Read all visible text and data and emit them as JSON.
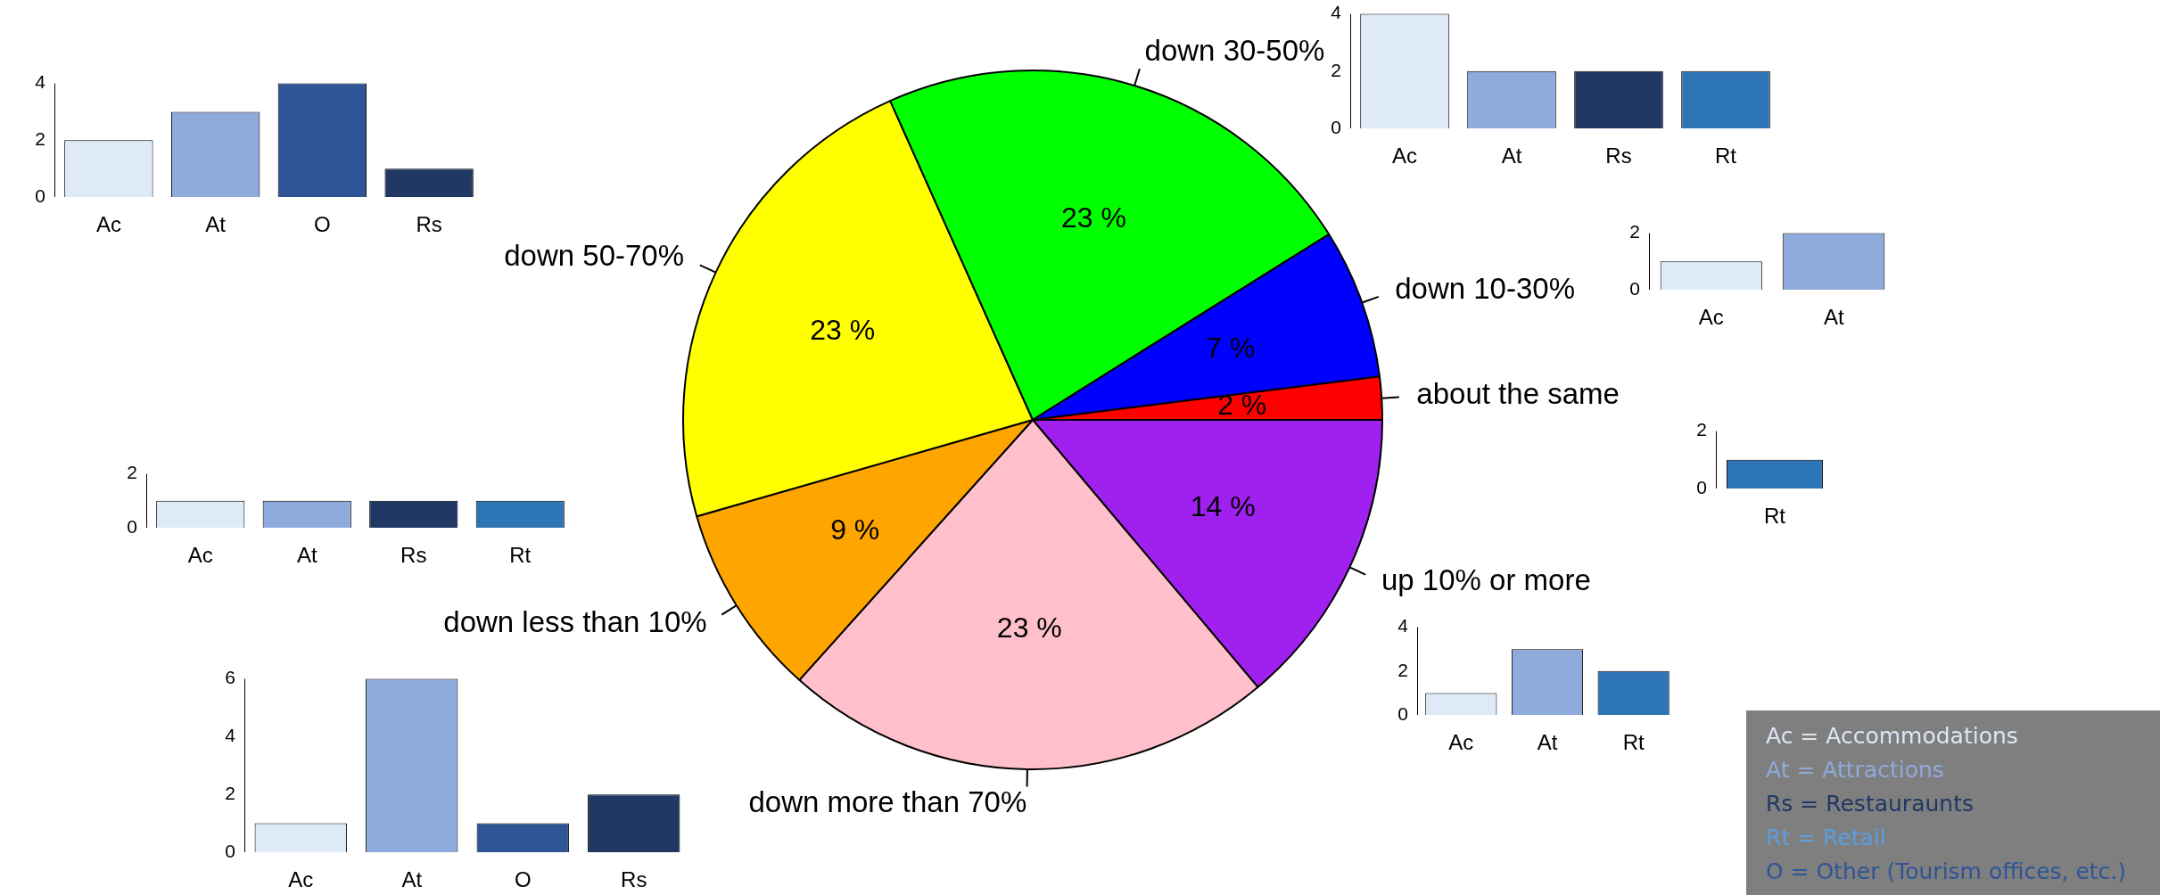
{
  "chart_data": [
    {
      "type": "bar",
      "categories": [
        "Ac",
        "At",
        "O",
        "Rs"
      ],
      "values": [
        2,
        3,
        4,
        1
      ],
      "colors": [
        "#deebf7",
        "#8faadc",
        "#2f5597",
        "#203864"
      ],
      "ylim": [
        0,
        4
      ],
      "yticks": [
        0,
        2,
        4
      ]
    },
    {
      "type": "pie",
      "categories": [
        "up 10% or more",
        "down more than 70%",
        "down less than 10%",
        "down 50-70%",
        "down 30-50%",
        "down 10-30%",
        "about the same"
      ],
      "values": [
        14,
        23,
        9,
        23,
        23,
        7,
        2
      ],
      "value_labels": [
        "14 %",
        "23 %",
        "9 %",
        "23 %",
        "23 %",
        "7 %",
        "2 %"
      ],
      "colors": [
        "#a020f0",
        "#ffc0cb",
        "#ffa500",
        "#ffff00",
        "#00ff00",
        "#0000ff",
        "#ff0000"
      ]
    },
    {
      "type": "bar",
      "categories": [
        "Ac",
        "At",
        "Rs",
        "Rt"
      ],
      "values": [
        4,
        2,
        2,
        2
      ],
      "colors": [
        "#deebf7",
        "#8faadc",
        "#203864",
        "#2e75b6"
      ],
      "ylim": [
        0,
        4
      ],
      "yticks": [
        0,
        2,
        4
      ]
    },
    {
      "type": "bar",
      "categories": [
        "Ac",
        "At"
      ],
      "values": [
        1,
        2
      ],
      "colors": [
        "#deebf7",
        "#8faadc"
      ],
      "ylim": [
        0,
        2
      ],
      "yticks": [
        0,
        2
      ]
    },
    {
      "type": "bar",
      "categories": [
        "Rt"
      ],
      "values": [
        1
      ],
      "colors": [
        "#2e75b6"
      ],
      "ylim": [
        0,
        2
      ],
      "yticks": [
        0,
        2
      ]
    },
    {
      "type": "bar",
      "categories": [
        "Ac",
        "At",
        "Rs",
        "Rt"
      ],
      "values": [
        1,
        1,
        1,
        1
      ],
      "colors": [
        "#deebf7",
        "#8faadc",
        "#203864",
        "#2e75b6"
      ],
      "ylim": [
        0,
        2
      ],
      "yticks": [
        0,
        2
      ]
    },
    {
      "type": "bar",
      "categories": [
        "Ac",
        "At",
        "Rt"
      ],
      "values": [
        1,
        3,
        2
      ],
      "colors": [
        "#deebf7",
        "#8faadc",
        "#2e75b6"
      ],
      "ylim": [
        0,
        4
      ],
      "yticks": [
        0,
        2,
        4
      ]
    },
    {
      "type": "bar",
      "categories": [
        "Ac",
        "At",
        "O",
        "Rs"
      ],
      "values": [
        1,
        6,
        1,
        2
      ],
      "colors": [
        "#deebf7",
        "#8faadc",
        "#2f5597",
        "#203864"
      ],
      "ylim": [
        0,
        6
      ],
      "yticks": [
        0,
        2,
        4,
        6
      ]
    },
    {
      "type": "other",
      "annotations": [
        "Ac = Accommodations",
        "At = Attractions",
        "Rs = Restauraunts",
        "Rt = Retail",
        "O = Other (Tourism offices, etc.)"
      ]
    }
  ]
}
